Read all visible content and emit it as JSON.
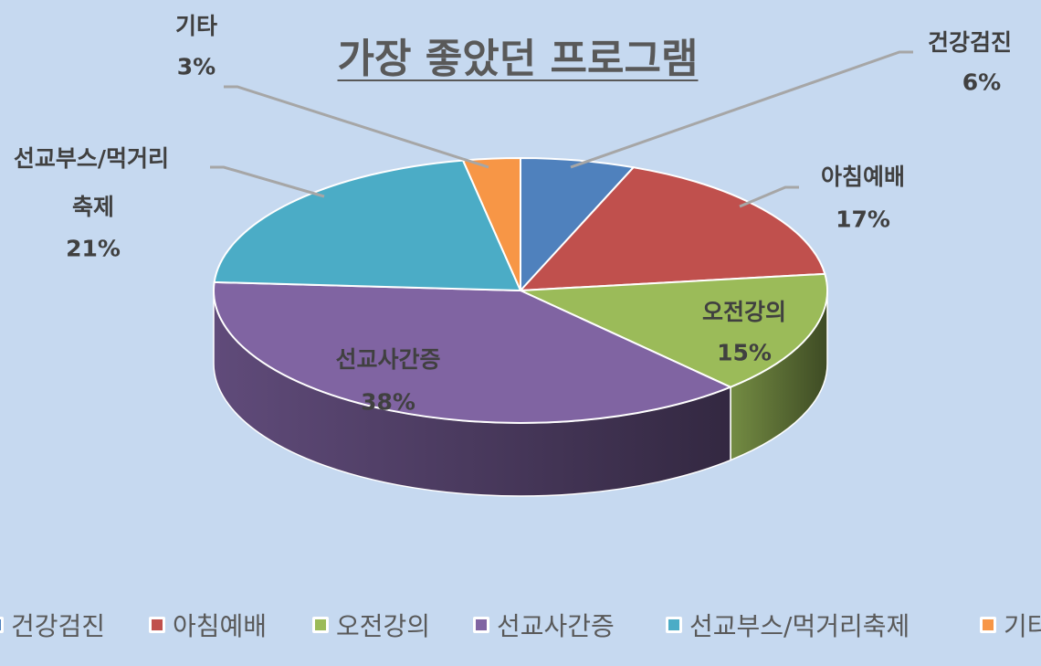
{
  "chart_data": {
    "type": "pie",
    "style": "3d",
    "title": "가장 좋았던 프로그램",
    "categories": [
      "건강검진",
      "아침예배",
      "오전강의",
      "선교사간증",
      "선교부스/먹거리축제",
      "기타"
    ],
    "values": [
      6,
      17,
      15,
      38,
      21,
      3
    ],
    "data_labels": [
      {
        "name": "건강검진",
        "percent": "6%"
      },
      {
        "name": "아침예배",
        "percent": "17%"
      },
      {
        "name": "오전강의",
        "percent": "15%"
      },
      {
        "name": "선교사간증",
        "percent": "38%"
      },
      {
        "name_line1": "선교부스/먹거리",
        "name_line2": "축제",
        "percent": "21%"
      },
      {
        "name": "기타",
        "percent": "3%"
      }
    ],
    "colors": [
      "#4F81BD",
      "#C0504D",
      "#9BBB59",
      "#8064A2",
      "#4BACC6",
      "#F79646"
    ],
    "legend_position": "bottom",
    "legend": [
      "건강검진",
      "아침예배",
      "오전강의",
      "선교사간증",
      "선교부스/먹거리축제",
      "기타"
    ]
  }
}
